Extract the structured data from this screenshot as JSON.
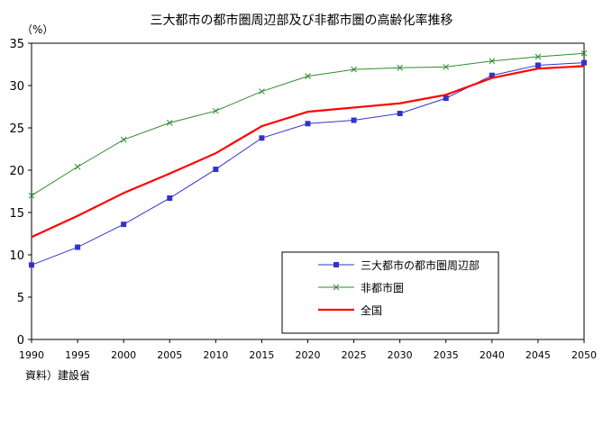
{
  "title": "三大都市の都市圏周辺部及び非都市圏の高齢化率推移",
  "unit_label": "（%）",
  "source": "資料）建設省",
  "chart_data": {
    "type": "line",
    "title": "三大都市の都市圏周辺部及び非都市圏の高齢化率推移",
    "xlabel": "",
    "ylabel": "（%）",
    "x": [
      "1990",
      "1995",
      "2000",
      "2005",
      "2010",
      "2015",
      "2020",
      "2025",
      "2030",
      "2035",
      "2040",
      "2045",
      "2050"
    ],
    "ylim": [
      0,
      35
    ],
    "yticks": [
      0,
      5,
      10,
      15,
      20,
      25,
      30,
      35
    ],
    "grid": false,
    "legend_position": "lower-right inside",
    "series": [
      {
        "name": "三大都市の都市圏周辺部",
        "marker": "square",
        "color": "#3333cc",
        "values": [
          8.8,
          10.9,
          13.6,
          16.7,
          20.1,
          23.8,
          25.5,
          25.9,
          26.7,
          28.5,
          31.2,
          32.4,
          32.7
        ]
      },
      {
        "name": "非都市圏",
        "marker": "x",
        "color": "#2e8b2e",
        "values": [
          17.0,
          20.4,
          23.6,
          25.6,
          27.0,
          29.3,
          31.1,
          31.9,
          32.1,
          32.2,
          32.9,
          33.4,
          33.8
        ]
      },
      {
        "name": "全国",
        "marker": "none",
        "color": "#ff0000",
        "values": [
          12.1,
          14.6,
          17.3,
          19.6,
          22.0,
          25.2,
          26.9,
          27.4,
          27.9,
          28.9,
          30.9,
          32.0,
          32.3
        ]
      }
    ]
  }
}
